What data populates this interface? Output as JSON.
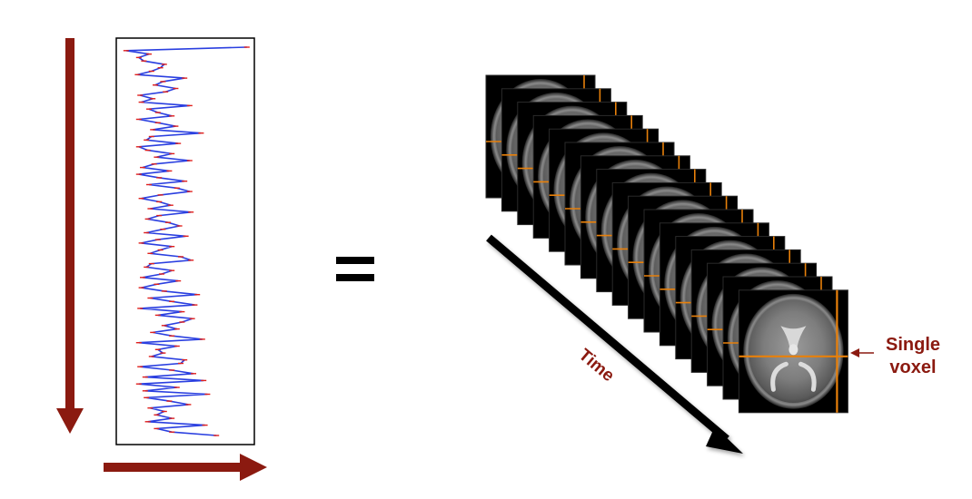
{
  "labels": {
    "time": "Time",
    "single_voxel_line1": "Single",
    "single_voxel_line2": "voxel"
  },
  "colors": {
    "arrow_red": "#8B1A10",
    "signal_blue": "#2A3FE0",
    "signal_red": "#E0201C",
    "crosshair_orange": "#E8800A",
    "label_text": "#8B1A10"
  },
  "chart_data": {
    "type": "line",
    "orientation": "vertical-time",
    "values": [
      0.97,
      0.02,
      0.2,
      0.12,
      0.16,
      0.32,
      0.29,
      0.22,
      0.11,
      0.48,
      0.31,
      0.25,
      0.41,
      0.33,
      0.13,
      0.23,
      0.14,
      0.52,
      0.2,
      0.27,
      0.38,
      0.12,
      0.27,
      0.41,
      0.23,
      0.61,
      0.22,
      0.18,
      0.43,
      0.12,
      0.19,
      0.38,
      0.26,
      0.52,
      0.24,
      0.15,
      0.36,
      0.12,
      0.28,
      0.48,
      0.2,
      0.42,
      0.52,
      0.29,
      0.14,
      0.28,
      0.37,
      0.21,
      0.53,
      0.28,
      0.19,
      0.35,
      0.44,
      0.31,
      0.18,
      0.49,
      0.27,
      0.14,
      0.38,
      0.29,
      0.21,
      0.45,
      0.53,
      0.22,
      0.18,
      0.38,
      0.3,
      0.15,
      0.43,
      0.26,
      0.14,
      0.32,
      0.58,
      0.21,
      0.38,
      0.56,
      0.13,
      0.46,
      0.27,
      0.54,
      0.46,
      0.32,
      0.42,
      0.23,
      0.38,
      0.62,
      0.12,
      0.42,
      0.27,
      0.31,
      0.22,
      0.48,
      0.45,
      0.13,
      0.38,
      0.55,
      0.17,
      0.63,
      0.12,
      0.42,
      0.17,
      0.66,
      0.18,
      0.36,
      0.51,
      0.21,
      0.32,
      0.26,
      0.38,
      0.19,
      0.64,
      0.26,
      0.38,
      0.73
    ]
  }
}
